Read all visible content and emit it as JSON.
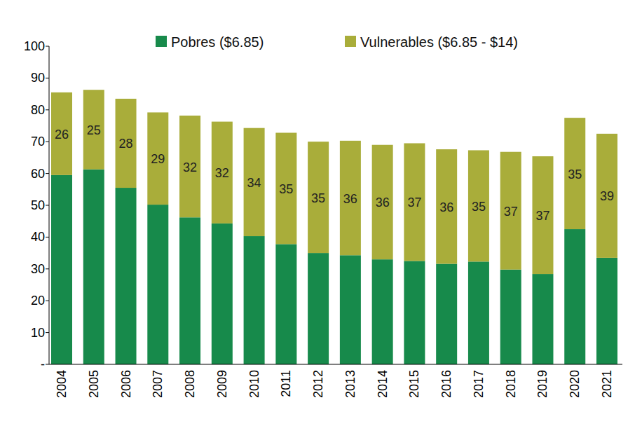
{
  "chart_data": {
    "type": "bar",
    "stacked": true,
    "legend": "top",
    "grid": false,
    "categories": [
      "2004",
      "2005",
      "2006",
      "2007",
      "2008",
      "2009",
      "2010",
      "2011",
      "2012",
      "2013",
      "2014",
      "2015",
      "2016",
      "2017",
      "2018",
      "2019",
      "2020",
      "2021"
    ],
    "series": [
      {
        "name": "Pobres ($6.85)",
        "color": "#178a4b",
        "data_labels": false,
        "values": [
          59.5,
          61.3,
          55.5,
          50.2,
          46.2,
          44.3,
          40.3,
          37.8,
          35,
          34.3,
          33,
          32.5,
          31.6,
          32.3,
          29.8,
          28.4,
          42.5,
          33.5
        ]
      },
      {
        "name": "Vulnerables ($6.85 - $14)",
        "color": "#a9ad3a",
        "data_labels": true,
        "values": [
          26,
          25,
          28,
          29,
          32,
          32,
          34,
          35,
          35,
          36,
          36,
          37,
          36,
          35,
          37,
          37,
          35,
          39
        ]
      }
    ],
    "ylim": [
      0,
      100
    ],
    "yticks": [
      {
        "value": 0,
        "label": "-"
      },
      10,
      20,
      30,
      40,
      50,
      60,
      70,
      80,
      90,
      100
    ]
  }
}
